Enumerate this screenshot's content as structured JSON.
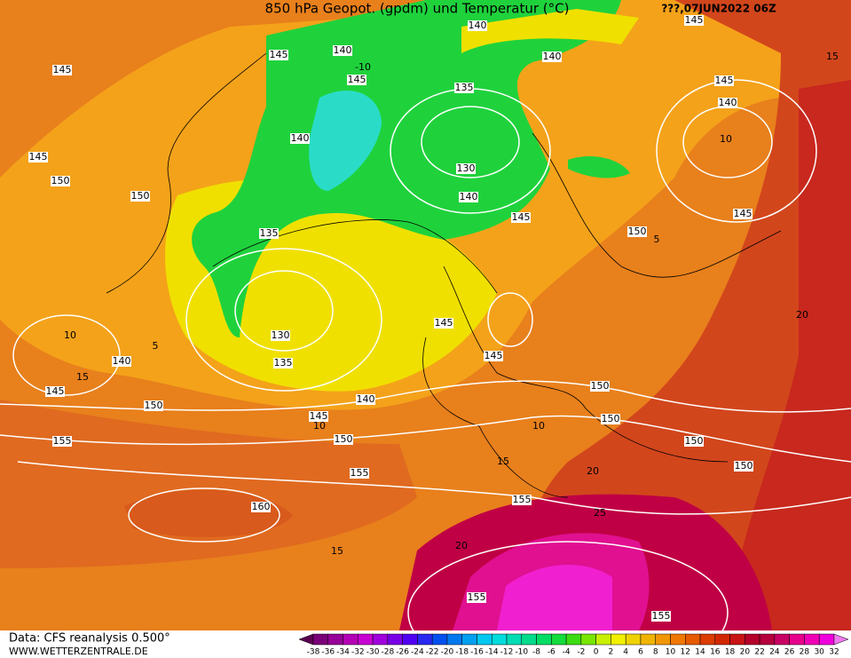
{
  "header": {
    "title": "850 hPa Geopot. (gpdm) und Temperatur (°C)",
    "date": "???,07JUN2022 06Z"
  },
  "footer": {
    "source": "Data: CFS reanalysis 0.500°",
    "site": "WWW.WETTERZENTRALE.DE"
  },
  "geopotential_labels": [
    145,
    145,
    150,
    150,
    145,
    140,
    140,
    145,
    140,
    145,
    135,
    140,
    130,
    140,
    145,
    145,
    140,
    145,
    150,
    135,
    130,
    135,
    140,
    145,
    150,
    140,
    145,
    145,
    145,
    150,
    150,
    150,
    150,
    150,
    155,
    155,
    155,
    160,
    155,
    155
  ],
  "temperature_labels": [
    -10,
    10,
    10,
    15,
    15,
    20,
    20,
    25,
    20,
    15,
    15,
    10,
    10,
    5,
    5
  ],
  "colorbar": {
    "ticks": [
      -38,
      -36,
      -34,
      -32,
      -30,
      -28,
      -26,
      -24,
      -22,
      -20,
      -18,
      -16,
      -14,
      -12,
      -10,
      -8,
      -6,
      -4,
      -2,
      0,
      2,
      4,
      6,
      8,
      10,
      12,
      14,
      16,
      18,
      20,
      22,
      24,
      26,
      28,
      30,
      32
    ],
    "colors": [
      "#5a0050",
      "#7a0078",
      "#960096",
      "#b400b4",
      "#c800d2",
      "#a000dc",
      "#7800e6",
      "#5000f0",
      "#2828f0",
      "#0050f0",
      "#0078f0",
      "#00a0f0",
      "#00c8f0",
      "#00dcdc",
      "#00dcb4",
      "#00dc8c",
      "#00dc64",
      "#14dc3c",
      "#3cdc14",
      "#78e600",
      "#c8f000",
      "#f0f000",
      "#f0d200",
      "#f0b400",
      "#f09600",
      "#f07800",
      "#e65a00",
      "#dc3c00",
      "#d22800",
      "#c81414",
      "#b40028",
      "#b4003c",
      "#c80064",
      "#e6008c",
      "#f000b4",
      "#f000dc",
      "#f078f0"
    ]
  }
}
